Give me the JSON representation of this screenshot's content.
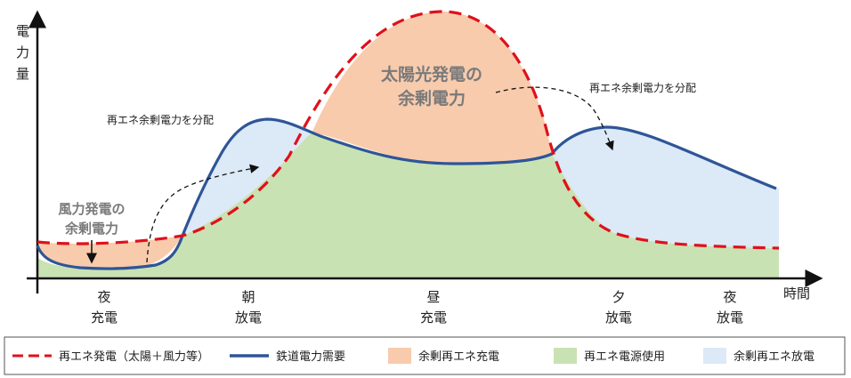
{
  "axis": {
    "y_label": [
      "電",
      "力",
      "量"
    ],
    "x_label": "時間"
  },
  "annotations": {
    "solar_surplus": [
      "太陽光発電の",
      "余剰電力"
    ],
    "wind_surplus": [
      "風力発電の",
      "余剰電力"
    ],
    "distribute_left": "再エネ余剰電力を分配",
    "distribute_right": "再エネ余剰電力を分配"
  },
  "periods": [
    {
      "time": "夜",
      "action": "充電"
    },
    {
      "time": "朝",
      "action": "放電"
    },
    {
      "time": "昼",
      "action": "充電"
    },
    {
      "time": "夕",
      "action": "放電"
    },
    {
      "time": "夜",
      "action": "放電"
    }
  ],
  "legend": [
    {
      "label": "再エネ発電（太陽＋風力等）",
      "kind": "dashed-line",
      "color": "#e0101a"
    },
    {
      "label": "鉄道電力需要",
      "kind": "line",
      "color": "#2e5597"
    },
    {
      "label": "余剰再エネ充電",
      "kind": "swatch",
      "color": "#f8cbad"
    },
    {
      "label": "再エネ電源使用",
      "kind": "swatch",
      "color": "#c9e2b3"
    },
    {
      "label": "余剰再エネ放電",
      "kind": "swatch",
      "color": "#dce9f6"
    }
  ],
  "colors": {
    "renewable_line": "#e0101a",
    "demand_line": "#2e5597",
    "surplus_charge": "#f8cbad",
    "renewable_use": "#c9e2b3",
    "surplus_discharge": "#dce9f6"
  }
}
